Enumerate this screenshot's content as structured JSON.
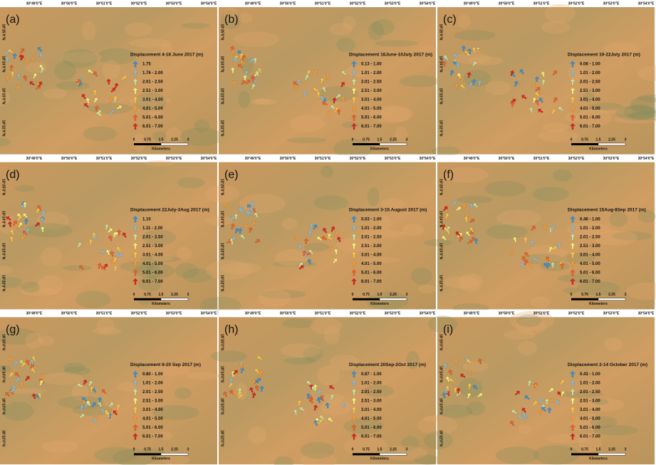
{
  "coordinates": {
    "longitude": [
      "30°49'0\"E",
      "30°50'0\"E",
      "30°51'0\"E",
      "30°52'0\"E",
      "30°53'0\"E",
      "30°54'0\"E"
    ],
    "latitude": [
      "18°25'0\"N",
      "18°24'0\"N",
      "18°23'0\"N",
      "18°22'0\"N"
    ]
  },
  "scale_bar": {
    "ticks": [
      "0",
      "0.75",
      "1.5",
      "2.25",
      "3"
    ],
    "unit": "Kilometers"
  },
  "panels": [
    {
      "label": "(a)",
      "legend_title": "Displacement 4-16 June 2017 (m)",
      "legend": [
        "1.75",
        "1.76 - 2.00",
        "2.01 - 2.50",
        "2.51 - 3.00",
        "3.01 - 4.00",
        "4.01 - 5.00",
        "5.01 - 6.00",
        "6.01 - 7.00"
      ]
    },
    {
      "label": "(b)",
      "legend_title": "Displacement 16June-10July 2017 (m)",
      "legend": [
        "0.13 - 1.00",
        "1.01 - 2.00",
        "2.01 - 2.50",
        "2.51 - 3.00",
        "3.01 - 4.00",
        "4.01 - 5.00",
        "5.01 - 6.00",
        "6.01 - 7.00"
      ]
    },
    {
      "label": "(c)",
      "legend_title": "Displacement 10-22July 2017 (m)",
      "legend": [
        "0.08 - 1.00",
        "1.01 - 2.00",
        "2.01 - 2.50",
        "2.51 - 3.00",
        "3.01 - 4.00",
        "4.01 - 5.00",
        "5.01 - 6.00",
        "6.01 - 7.00"
      ]
    },
    {
      "label": "(d)",
      "legend_title": "Displacement 22July-3Aug 2017 (m)",
      "legend": [
        "1.10",
        "1.11 - 2.00",
        "2.01 - 2.50",
        "2.51 - 3.00",
        "3.01 - 4.00",
        "4.01 - 5.00",
        "5.01 - 6.00",
        "6.01 - 7.00"
      ]
    },
    {
      "label": "(e)",
      "legend_title": "Displacement 3-15 August 2017 (m)",
      "legend": [
        "0.03 - 1.00",
        "1.01 - 2.00",
        "2.01 - 2.50",
        "2.51 - 3.00",
        "3.01 - 4.00",
        "4.01 - 5.00",
        "5.01 - 6.00",
        "6.01 - 7.00"
      ]
    },
    {
      "label": "(f)",
      "legend_title": "Displacement 15Aug-8Sep 2017 (m)",
      "legend": [
        "0.46 - 1.00",
        "1.01 - 2.00",
        "2.01 - 2.50",
        "2.51 - 3.00",
        "3.01 - 4.00",
        "4.01 - 5.00",
        "5.01 - 6.00",
        "6.01 - 7.00"
      ]
    },
    {
      "label": "(g)",
      "legend_title": "Displacement 8-20 Sep 2017 (m)",
      "legend": [
        "0.80 - 1.00",
        "1.01 - 2.00",
        "2.01 - 2.50",
        "2.51 - 3.00",
        "3.01 - 4.00",
        "4.01 - 5.00",
        "5.01 - 6.00",
        "6.01 - 7.00"
      ]
    },
    {
      "label": "(h)",
      "legend_title": "Displacement 20Sep-2Oct 2017 (m)",
      "legend": [
        "0.87 - 1.00",
        "1.01 - 2.00",
        "2.01 - 2.50",
        "2.51 - 3.00",
        "3.01 - 4.00",
        "4.01 - 5.00",
        "5.01 - 6.00",
        "6.01 - 7.00"
      ]
    },
    {
      "label": "(i)",
      "legend_title": "Displacement 2-14 October 2017 (m)",
      "legend": [
        "0.43 - 1.00",
        "1.01 - 2.00",
        "2.01 - 2.50",
        "2.51 - 3.00",
        "3.01 - 4.00",
        "4.01 - 5.00",
        "5.01 - 6.00",
        "6.01 - 7.00"
      ]
    }
  ]
}
